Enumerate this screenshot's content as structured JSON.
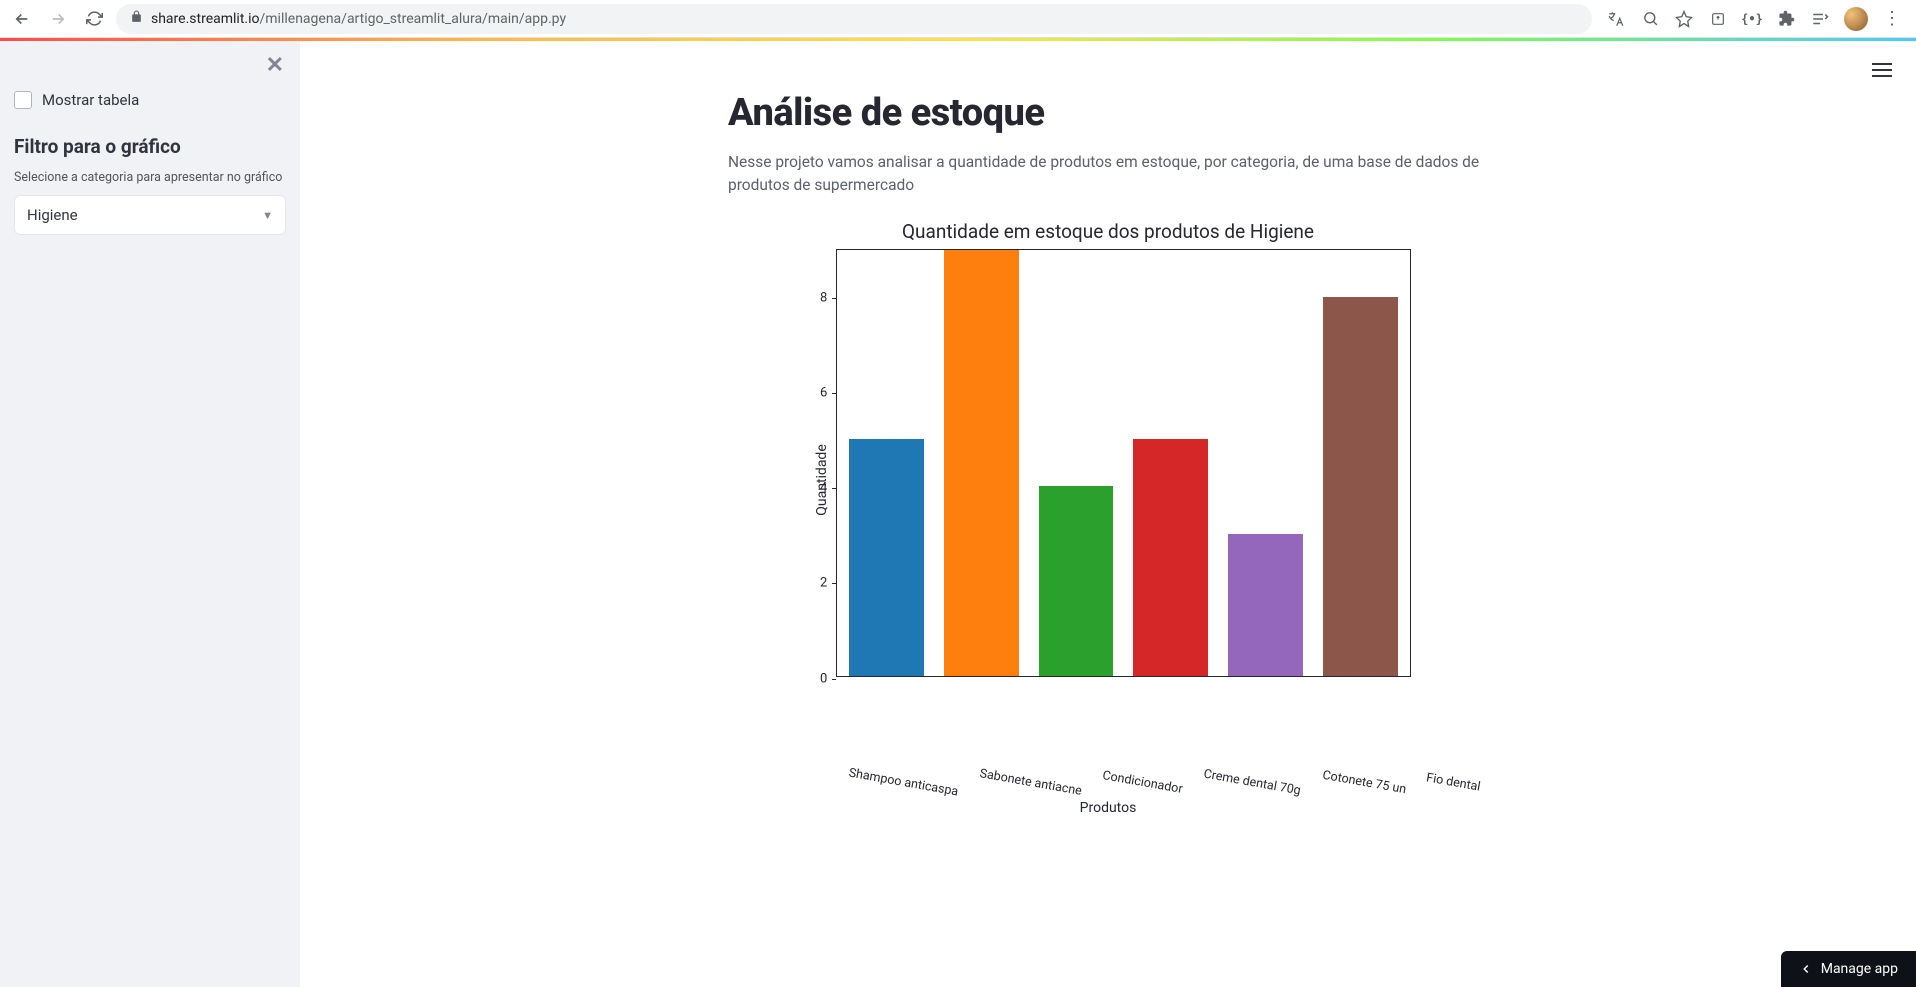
{
  "browser": {
    "url_host": "share.streamlit.io",
    "url_path": "/millenagena/artigo_streamlit_alura/main/app.py"
  },
  "sidebar": {
    "checkbox_label": "Mostrar tabela",
    "filter_heading": "Filtro para o gráfico",
    "filter_caption": "Selecione a categoria para apresentar no gráfico",
    "select_value": "Higiene"
  },
  "main": {
    "title": "Análise de estoque",
    "description": "Nesse projeto vamos analisar a quantidade de produtos em estoque, por categoria, de uma base de dados de produtos de supermercado"
  },
  "chart": {
    "type": "bar",
    "title": "Quantidade em estoque dos produtos de Higiene",
    "xlabel": "Produtos",
    "ylabel": "Quantidade",
    "ylim": [
      0,
      9
    ],
    "yticks": [
      0,
      2,
      4,
      6,
      8
    ],
    "categories": [
      "Shampoo anticaspa",
      "Sabonete antiacne",
      "Condicionador",
      "Creme dental 70g",
      "Cotonete 75 un",
      "Fio dental"
    ],
    "values": [
      5,
      9,
      4,
      5,
      3,
      8
    ],
    "bar_colors": [
      "#1f77b4",
      "#ff7f0e",
      "#2ca02c",
      "#d62728",
      "#9467bd",
      "#8c564b"
    ],
    "background_color": "#ffffff",
    "border_color": "#262730",
    "title_fontsize": 19,
    "label_fontsize": 14,
    "tick_fontsize": 13,
    "xlabel_rotation": 10
  },
  "footer": {
    "manage_app": "Manage app"
  }
}
